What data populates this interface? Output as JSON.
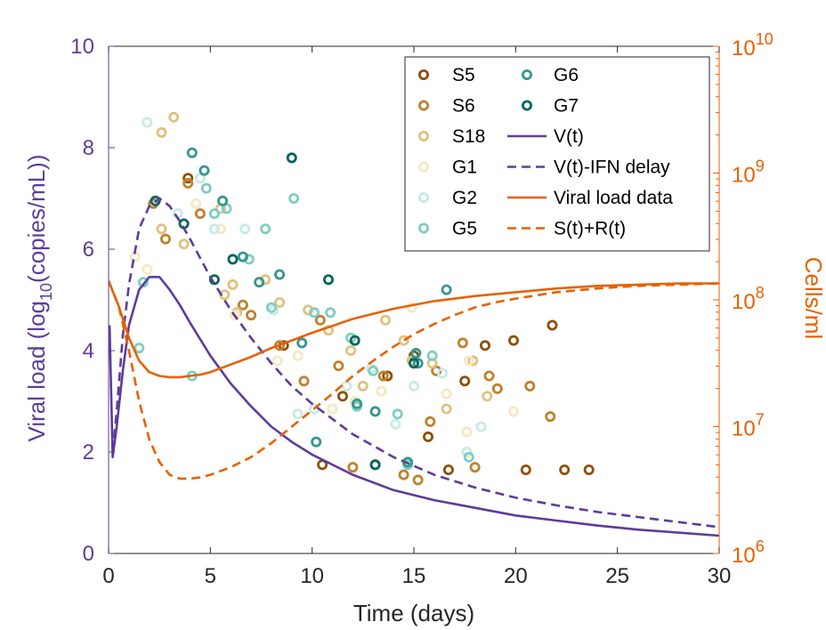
{
  "chart_data": {
    "type": "scatter",
    "title": "",
    "xlabel": "Time (days)",
    "ylabel_left": {
      "prefix": "Viral load (log",
      "sub": "10",
      "suffix": "(copies/mL))"
    },
    "ylabel_right": "Cells/ml",
    "xlim": [
      0,
      30
    ],
    "ylim_left": [
      0,
      10
    ],
    "ylim_right_log10": [
      6,
      10
    ],
    "right_axis_scale": "log",
    "grid": false,
    "legend_position": "top-right",
    "x_ticks": [
      0,
      5,
      10,
      15,
      20,
      25,
      30
    ],
    "y_ticks_left": [
      0,
      2,
      4,
      6,
      8,
      10
    ],
    "y_ticks_right": [
      {
        "base": "10",
        "exp": "6",
        "value": 6
      },
      {
        "base": "10",
        "exp": "7",
        "value": 7
      },
      {
        "base": "10",
        "exp": "8",
        "value": 8
      },
      {
        "base": "10",
        "exp": "9",
        "value": 9
      },
      {
        "base": "10",
        "exp": "10",
        "value": 10
      }
    ],
    "colors": {
      "left_axis": "#5e3c99",
      "right_axis": "#e66101",
      "text": "#262626"
    },
    "scatter_series": [
      {
        "name": "S5",
        "color": "#8c510a",
        "points": [
          [
            3.9,
            7.4
          ],
          [
            8.6,
            4.1
          ],
          [
            10.5,
            1.75
          ],
          [
            11.5,
            3.1
          ],
          [
            13.1,
            1.75
          ],
          [
            13.7,
            3.5
          ],
          [
            15.0,
            3.9
          ],
          [
            15.7,
            2.3
          ],
          [
            16.7,
            1.65
          ],
          [
            17.5,
            3.4
          ],
          [
            18.5,
            4.1
          ],
          [
            19.9,
            4.2
          ],
          [
            20.5,
            1.65
          ],
          [
            21.8,
            4.5
          ],
          [
            22.4,
            1.65
          ],
          [
            23.6,
            1.65
          ]
        ]
      },
      {
        "name": "S6",
        "color": "#bf812d",
        "points": [
          [
            2.2,
            6.9
          ],
          [
            2.8,
            6.2
          ],
          [
            3.9,
            7.3
          ],
          [
            4.5,
            6.7
          ],
          [
            6.6,
            4.9
          ],
          [
            7.0,
            4.7
          ],
          [
            8.4,
            4.1
          ],
          [
            9.6,
            3.4
          ],
          [
            10.4,
            4.6
          ],
          [
            11.3,
            3.7
          ],
          [
            12.0,
            1.7
          ],
          [
            13.5,
            3.5
          ],
          [
            14.5,
            1.55
          ],
          [
            15.2,
            1.45
          ],
          [
            15.8,
            2.6
          ],
          [
            16.1,
            3.6
          ],
          [
            17.4,
            4.15
          ],
          [
            18.0,
            1.7
          ],
          [
            18.7,
            3.5
          ],
          [
            19.1,
            3.25
          ],
          [
            20.7,
            3.3
          ],
          [
            21.7,
            2.7
          ]
        ]
      },
      {
        "name": "S18",
        "color": "#dfc27d",
        "points": [
          [
            2.6,
            8.3
          ],
          [
            3.2,
            8.6
          ],
          [
            2.6,
            6.4
          ],
          [
            3.7,
            6.1
          ],
          [
            5.5,
            6.8
          ],
          [
            5.7,
            5.1
          ],
          [
            6.1,
            5.3
          ],
          [
            6.3,
            4.75
          ],
          [
            7.7,
            5.4
          ],
          [
            8.4,
            4.95
          ],
          [
            9.8,
            4.8
          ],
          [
            10.8,
            4.4
          ],
          [
            11.9,
            4.0
          ],
          [
            12.5,
            3.3
          ],
          [
            13.6,
            4.6
          ],
          [
            14.5,
            4.2
          ],
          [
            14.9,
            3.8
          ],
          [
            15.9,
            3.75
          ],
          [
            16.6,
            2.85
          ],
          [
            17.9,
            3.8
          ],
          [
            18.6,
            3.1
          ]
        ]
      },
      {
        "name": "G1",
        "color": "#f6e8c3",
        "points": [
          [
            1.3,
            5.85
          ],
          [
            1.9,
            5.6
          ],
          [
            4.3,
            6.9
          ],
          [
            5.5,
            6.4
          ],
          [
            6.2,
            4.7
          ],
          [
            8.3,
            3.8
          ],
          [
            9.3,
            3.9
          ],
          [
            11.0,
            2.85
          ],
          [
            12.1,
            3.0
          ],
          [
            13.4,
            3.2
          ],
          [
            14.9,
            4.85
          ],
          [
            16.6,
            3.15
          ],
          [
            17.7,
            3.8
          ],
          [
            17.6,
            2.4
          ],
          [
            19.9,
            2.8
          ]
        ]
      },
      {
        "name": "G2",
        "color": "#c7eae5",
        "points": [
          [
            1.9,
            8.5
          ],
          [
            3.4,
            6.7
          ],
          [
            4.5,
            7.4
          ],
          [
            5.2,
            6.4
          ],
          [
            6.7,
            6.4
          ],
          [
            8.1,
            4.8
          ],
          [
            9.3,
            2.75
          ],
          [
            10.1,
            2.85
          ],
          [
            11.7,
            3.3
          ],
          [
            12.9,
            3.65
          ],
          [
            14.1,
            2.55
          ],
          [
            15.0,
            3.3
          ],
          [
            16.4,
            3.55
          ],
          [
            17.6,
            2.0
          ],
          [
            18.3,
            2.5
          ]
        ]
      },
      {
        "name": "G5",
        "color": "#80cdc1",
        "points": [
          [
            1.5,
            4.05
          ],
          [
            1.7,
            5.35
          ],
          [
            4.1,
            3.5
          ],
          [
            4.8,
            7.2
          ],
          [
            5.2,
            6.7
          ],
          [
            5.8,
            6.8
          ],
          [
            6.9,
            5.8
          ],
          [
            7.7,
            6.4
          ],
          [
            8.0,
            4.85
          ],
          [
            9.1,
            7.0
          ],
          [
            10.1,
            4.75
          ],
          [
            10.9,
            4.75
          ],
          [
            11.9,
            4.25
          ],
          [
            12.2,
            2.9
          ],
          [
            13.0,
            3.6
          ],
          [
            14.2,
            2.75
          ],
          [
            14.7,
            1.75
          ],
          [
            15.9,
            3.9
          ],
          [
            17.7,
            1.9
          ]
        ]
      },
      {
        "name": "G6",
        "color": "#35978f",
        "points": [
          [
            4.1,
            7.9
          ],
          [
            4.7,
            7.55
          ],
          [
            5.6,
            6.95
          ],
          [
            6.6,
            5.85
          ],
          [
            7.4,
            5.35
          ],
          [
            8.4,
            5.5
          ],
          [
            9.5,
            4.15
          ],
          [
            10.2,
            2.2
          ],
          [
            12.2,
            2.95
          ],
          [
            13.1,
            2.8
          ],
          [
            14.7,
            1.8
          ],
          [
            15.1,
            3.95
          ],
          [
            15.2,
            3.75
          ],
          [
            16.6,
            5.2
          ]
        ]
      },
      {
        "name": "G7",
        "color": "#01665e",
        "points": [
          [
            2.3,
            6.95
          ],
          [
            3.7,
            6.5
          ],
          [
            5.2,
            5.4
          ],
          [
            6.1,
            5.8
          ],
          [
            9.0,
            7.8
          ],
          [
            10.8,
            5.4
          ],
          [
            12.1,
            4.2
          ],
          [
            13.1,
            1.75
          ],
          [
            15.0,
            3.75
          ]
        ]
      }
    ],
    "line_series": [
      {
        "name": "V(t)",
        "color": "#5e3c99",
        "style": "solid",
        "axis": "left",
        "x": [
          0.05,
          0.2,
          0.4,
          0.7,
          1.0,
          1.5,
          2.0,
          2.5,
          3.0,
          3.5,
          4.0,
          5.0,
          6.0,
          7.0,
          8.0,
          9.0,
          10.0,
          12.0,
          14.0,
          16.0,
          18.0,
          20.0,
          22.0,
          24.0,
          26.0,
          28.0,
          30.0
        ],
        "y": [
          4.5,
          1.9,
          2.5,
          3.6,
          4.5,
          5.2,
          5.45,
          5.45,
          5.2,
          4.9,
          4.55,
          3.9,
          3.35,
          2.9,
          2.5,
          2.2,
          1.95,
          1.55,
          1.25,
          1.05,
          0.9,
          0.75,
          0.65,
          0.55,
          0.47,
          0.41,
          0.35
        ]
      },
      {
        "name": "V(t)-IFN delay",
        "color": "#5e3c99",
        "style": "dashed",
        "axis": "left",
        "x": [
          0.2,
          0.4,
          0.7,
          1.0,
          1.5,
          2.0,
          2.5,
          3.0,
          3.5,
          4.0,
          5.0,
          6.0,
          7.0,
          8.0,
          9.0,
          10.0,
          12.0,
          14.0,
          16.0,
          18.0,
          20.0,
          22.0,
          24.0,
          26.0,
          28.0,
          30.0
        ],
        "y": [
          2.0,
          2.8,
          4.3,
          5.3,
          6.4,
          6.85,
          7.0,
          6.85,
          6.55,
          6.2,
          5.45,
          4.8,
          4.25,
          3.75,
          3.3,
          2.95,
          2.35,
          1.9,
          1.55,
          1.3,
          1.1,
          0.95,
          0.82,
          0.72,
          0.62,
          0.52
        ]
      },
      {
        "name": "Viral load data",
        "color": "#e66101",
        "style": "solid",
        "axis": "right",
        "x": [
          0.0,
          0.5,
          1.0,
          1.5,
          2.0,
          2.5,
          3.0,
          3.5,
          4.0,
          4.5,
          5.0,
          6.0,
          7.0,
          8.0,
          9.0,
          10.0,
          12.0,
          14.0,
          16.0,
          18.0,
          20.0,
          22.0,
          24.0,
          26.0,
          28.0,
          30.0
        ],
        "y": [
          8.15,
          7.95,
          7.7,
          7.52,
          7.43,
          7.4,
          7.39,
          7.39,
          7.4,
          7.41,
          7.43,
          7.49,
          7.55,
          7.62,
          7.68,
          7.74,
          7.85,
          7.93,
          7.99,
          8.03,
          8.06,
          8.09,
          8.11,
          8.12,
          8.13,
          8.13
        ]
      },
      {
        "name": "S(t)+R(t)",
        "color": "#e66101",
        "style": "dashed",
        "axis": "right",
        "x": [
          0.0,
          0.5,
          1.0,
          1.5,
          2.0,
          2.5,
          3.0,
          3.5,
          4.0,
          4.5,
          5.0,
          6.0,
          7.0,
          8.0,
          9.0,
          10.0,
          11.0,
          12.0,
          13.0,
          14.0,
          15.0,
          16.0,
          17.0,
          18.0,
          19.0,
          20.0,
          22.0,
          24.0,
          26.0,
          28.0,
          30.0
        ],
        "y": [
          8.15,
          7.95,
          7.6,
          7.2,
          6.9,
          6.72,
          6.62,
          6.59,
          6.59,
          6.6,
          6.62,
          6.68,
          6.76,
          6.87,
          7.0,
          7.13,
          7.26,
          7.4,
          7.52,
          7.63,
          7.73,
          7.81,
          7.88,
          7.94,
          7.98,
          8.01,
          8.06,
          8.09,
          8.11,
          8.12,
          8.13
        ]
      }
    ],
    "legend": {
      "column1": [
        "S5",
        "S6",
        "S18",
        "G1",
        "G2",
        "G5"
      ],
      "column2": [
        "G6",
        "G7",
        "V(t)",
        "V(t)-IFN delay",
        "Viral load data",
        "S(t)+R(t)"
      ]
    }
  }
}
